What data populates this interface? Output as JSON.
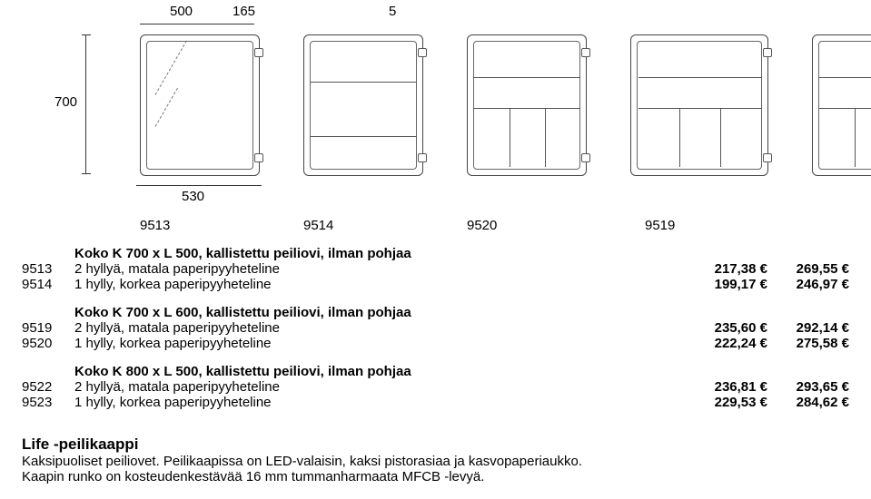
{
  "dims": {
    "width": "500",
    "depth": "165",
    "extra": "5",
    "height": "700",
    "outerWidth": "530"
  },
  "models": [
    "9513",
    "9514",
    "9520",
    "9519"
  ],
  "sections": [
    {
      "title": "Koko  K 700 x L 500, kallistettu peiliovi, ilman pohjaa",
      "rows": [
        {
          "code": "9513",
          "desc": "2 hyllyä, matala paperipyyheteline",
          "p1": "217,38 €",
          "p2": "269,55 €"
        },
        {
          "code": "9514",
          "desc": "1 hylly, korkea paperipyyheteline",
          "p1": "199,17 €",
          "p2": "246,97 €"
        }
      ]
    },
    {
      "title": "Koko  K 700 x L 600, kallistettu peiliovi, ilman pohjaa",
      "rows": [
        {
          "code": "9519",
          "desc": "2 hyllyä, matala paperipyyheteline",
          "p1": "235,60 €",
          "p2": "292,14 €"
        },
        {
          "code": "9520",
          "desc": "1 hylly, korkea paperipyyheteline",
          "p1": "222,24 €",
          "p2": "275,58 €"
        }
      ]
    },
    {
      "title": "Koko  K 800 x L 500, kallistettu peiliovi, ilman pohjaa",
      "rows": [
        {
          "code": "9522",
          "desc": "2 hyllyä, matala paperipyyheteline",
          "p1": "236,81 €",
          "p2": "293,65 €"
        },
        {
          "code": "9523",
          "desc": "1 hylly, korkea paperipyyheteline",
          "p1": "229,53 €",
          "p2": "284,62 €"
        }
      ]
    }
  ],
  "bottom": {
    "title": "Life -peilikaappi",
    "line1": "Kaksipuoliset peiliovet. Peilikaapissa on LED-valaisin, kaksi pistorasiaa ja kasvopaperiaukko.",
    "line2": "Kaapin runko on kosteudenkestävää 16 mm tummanharmaata MFCB -levyä."
  }
}
